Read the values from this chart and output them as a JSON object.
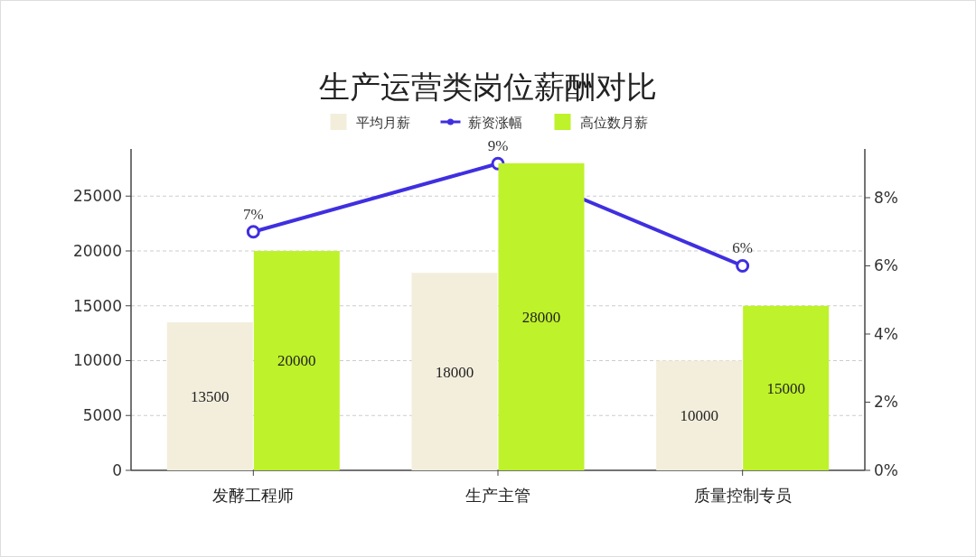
{
  "chart_data": {
    "type": "bar",
    "title": "生产运营类岗位薪酬对比",
    "categories": [
      "发酵工程师",
      "生产主管",
      "质量控制专员"
    ],
    "series": [
      {
        "name": "平均月薪",
        "color": "#f3eedc",
        "values": [
          13500,
          18000,
          10000
        ]
      },
      {
        "name": "薪资涨幅",
        "type": "line",
        "axis": "y2",
        "color": "#3f2fe0",
        "marker": "circle",
        "values": [
          7,
          9,
          6
        ],
        "value_labels": [
          "7%",
          "9%",
          "6%"
        ]
      },
      {
        "name": "高位数月薪",
        "color": "#bef22a",
        "values": [
          20000,
          28000,
          15000
        ]
      }
    ],
    "ylim": [
      0,
      29300
    ],
    "yticks": [
      0,
      5000,
      10000,
      15000,
      20000,
      25000
    ],
    "y2lim": [
      0,
      9.43
    ],
    "y2ticks": [
      {
        "value": 0,
        "label": "0%"
      },
      {
        "value": 2,
        "label": "2%"
      },
      {
        "value": 4,
        "label": "4%"
      },
      {
        "value": 6,
        "label": "6%"
      },
      {
        "value": 8,
        "label": "8%"
      }
    ],
    "data_labels": true,
    "grid": "y",
    "legend": "top"
  }
}
